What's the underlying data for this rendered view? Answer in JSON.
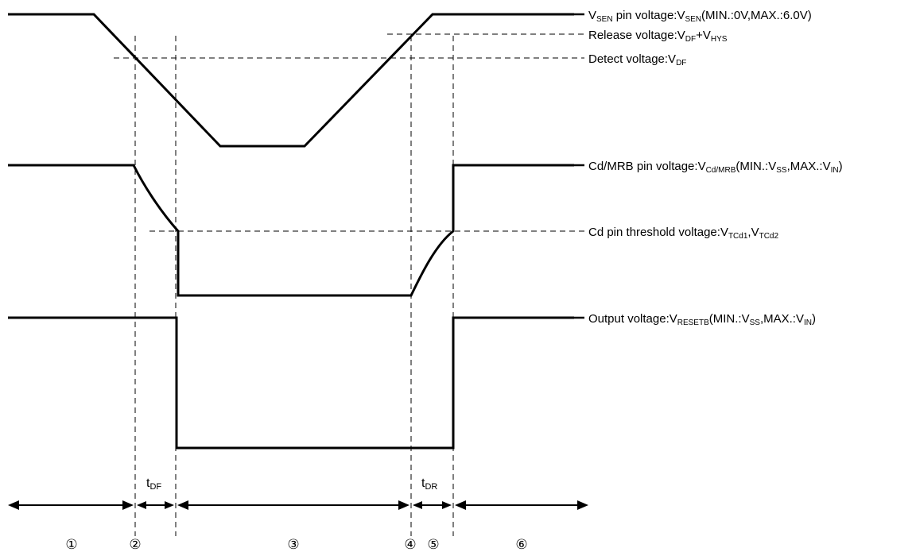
{
  "labels": {
    "vsen": {
      "pre": "V",
      "sub": "SEN",
      "mid": " pin voltage:V",
      "sub2": "SEN",
      "post": "(MIN.:0V,MAX.:6.0V)"
    },
    "release": {
      "pre": "Release voltage:V",
      "sub": "DF",
      "mid": "+V",
      "sub2": "HYS",
      "post": ""
    },
    "detect": {
      "pre": "Detect voltage:V",
      "sub": "DF",
      "mid": "",
      "sub2": "",
      "post": ""
    },
    "cdmrb": {
      "pre": "Cd/MRB pin voltage:V",
      "sub": "Cd/MRB",
      "mid": "(MIN.:V",
      "sub2": "SS",
      "mid2": ",MAX.:V",
      "sub3": "IN",
      "post": ")"
    },
    "cd_threshold": {
      "pre": "Cd pin threshold voltage:V",
      "sub": "TCd1",
      "mid": ",V",
      "sub2": "TCd2",
      "post": ""
    },
    "output": {
      "pre": "Output voltage:V",
      "sub": "RESETB",
      "mid": "(MIN.:V",
      "sub2": "SS",
      "mid2": ",MAX.:V",
      "sub3": "IN",
      "post": ")"
    }
  },
  "timing": {
    "tdf": {
      "pre": "t",
      "sub": "DF"
    },
    "tdr": {
      "pre": "t",
      "sub": "DR"
    }
  },
  "periods": [
    "①",
    "②",
    "③",
    "④",
    "⑤",
    "⑥"
  ]
}
